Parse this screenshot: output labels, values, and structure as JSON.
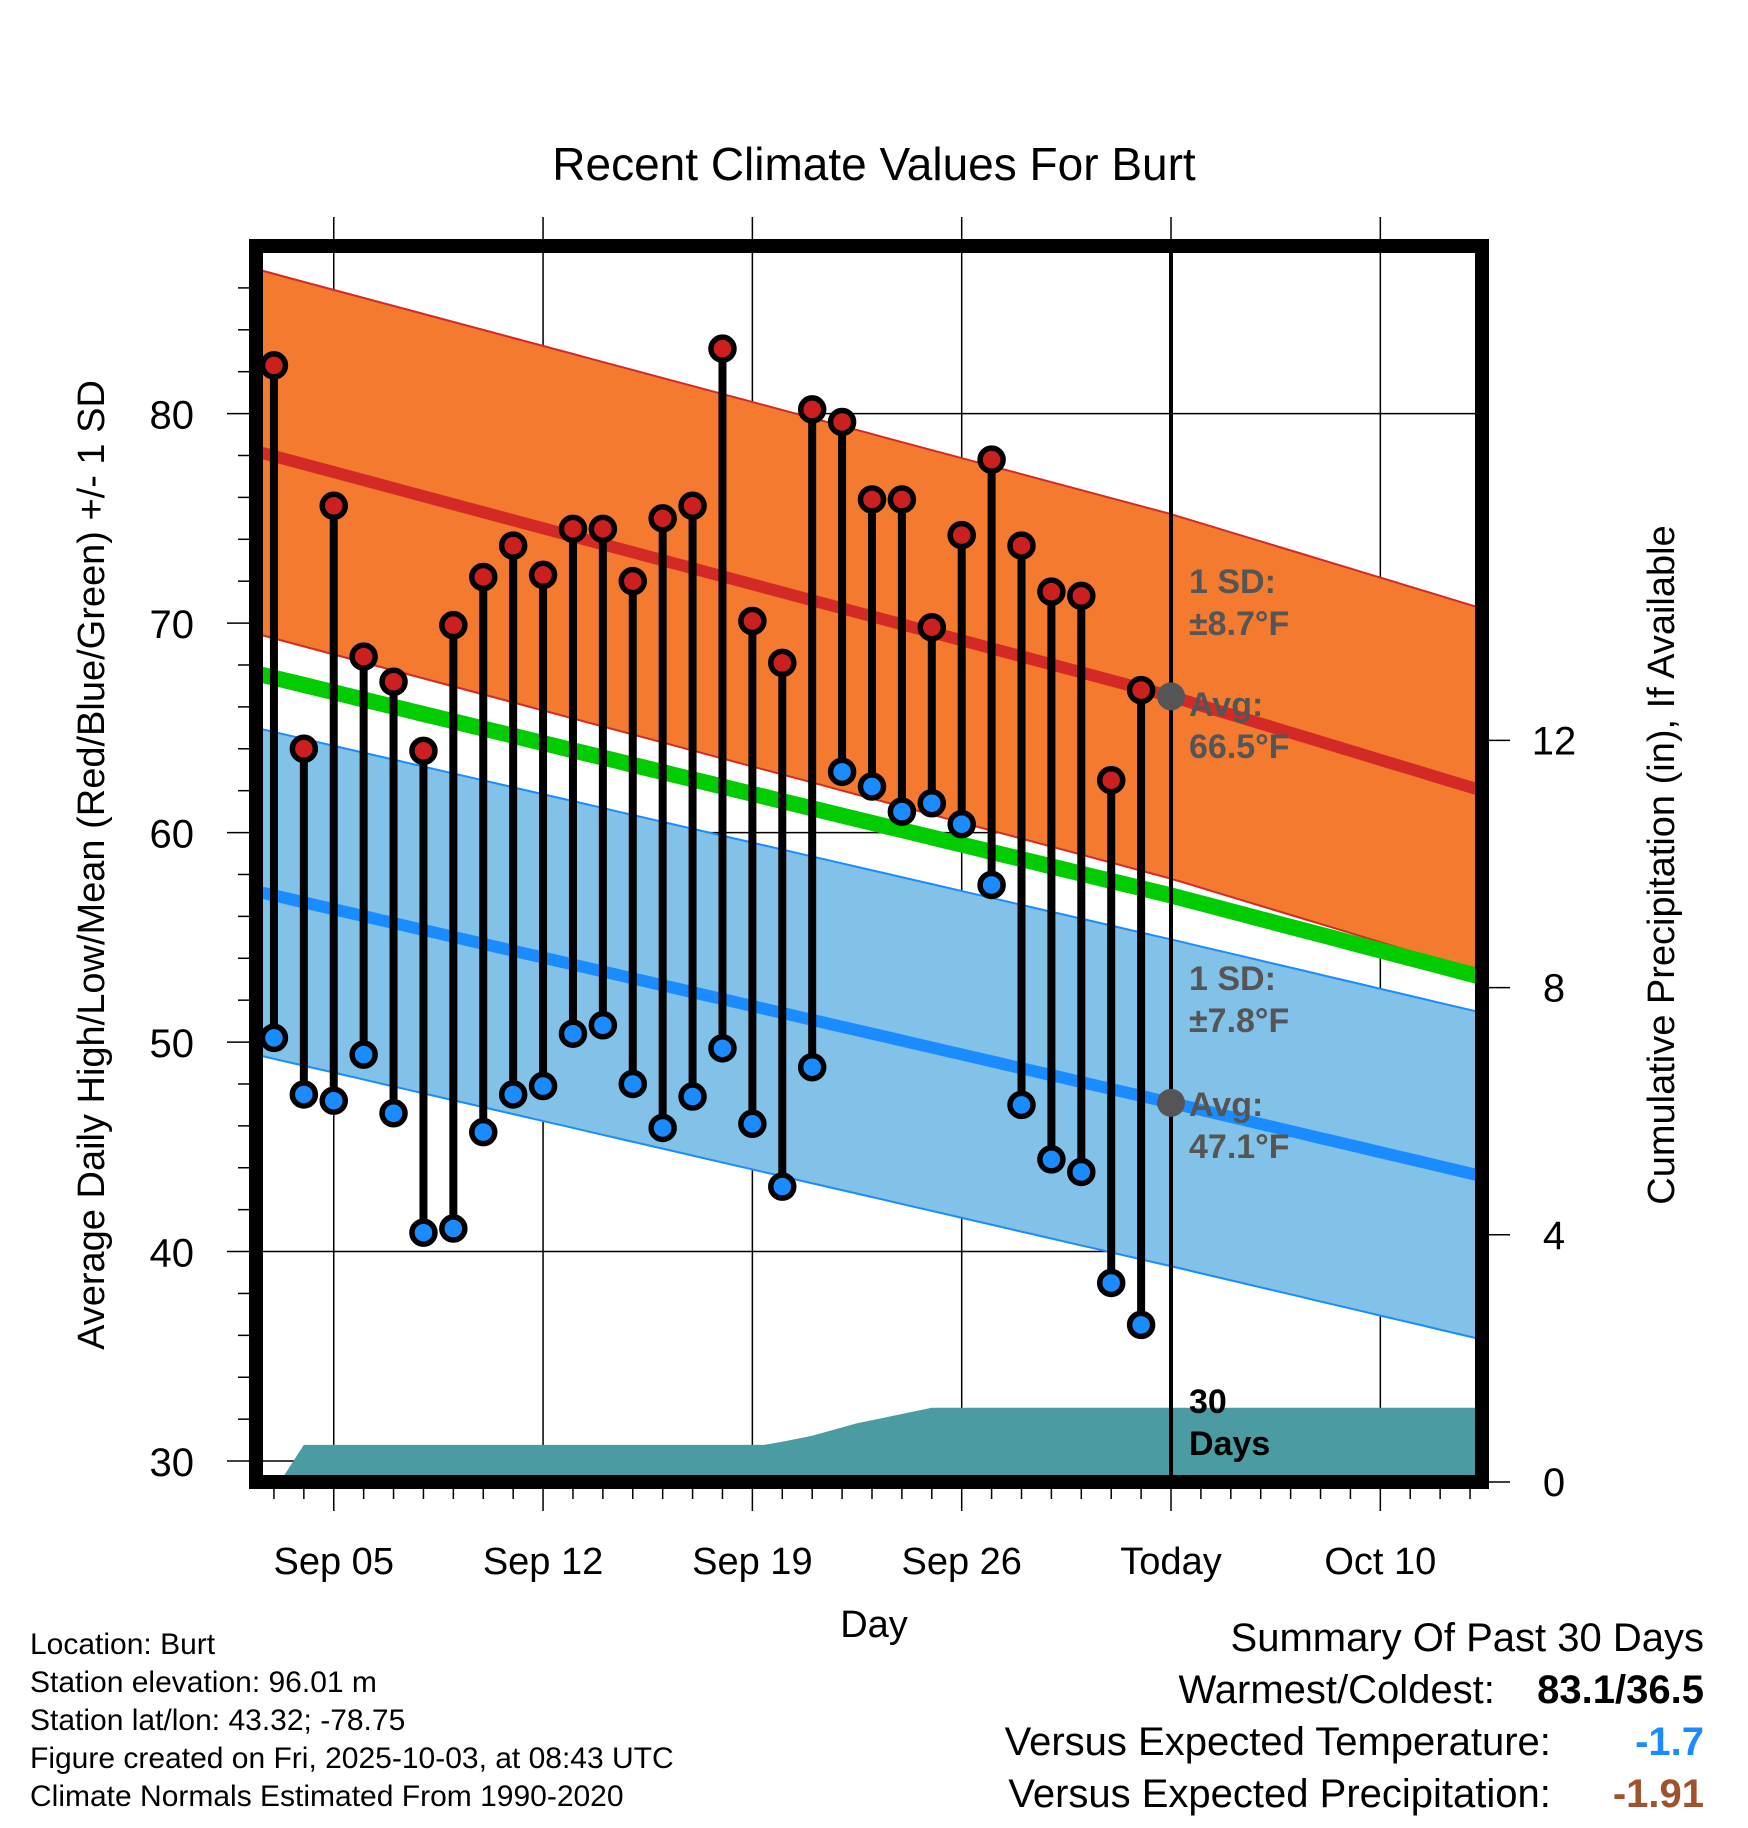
{
  "chart_data": {
    "type": "line",
    "title": "Recent Climate Values For Burt",
    "xlabel": "Day",
    "ylabel": "Average Daily High/Low/Mean (Red/Blue/Green) +/- 1 SD",
    "y2label": "Cumulative Precipitation (in), If Available",
    "xlim": [
      -2.6,
      38.4
    ],
    "ylim": [
      29,
      88
    ],
    "y2lim": [
      0,
      20
    ],
    "yticks": [
      30,
      40,
      50,
      60,
      70,
      80
    ],
    "y2ticks": [
      0,
      4,
      8,
      12
    ],
    "xticks": [
      {
        "x": 0,
        "label": "Sep 05"
      },
      {
        "x": 7,
        "label": "Sep 12"
      },
      {
        "x": 14,
        "label": "Sep 19"
      },
      {
        "x": 21,
        "label": "Sep 26"
      },
      {
        "x": 28,
        "label": "Today"
      },
      {
        "x": 35,
        "label": "Oct 10"
      }
    ],
    "today_x": 28,
    "days": [
      -2,
      -1,
      0,
      1,
      2,
      3,
      4,
      5,
      6,
      7,
      8,
      9,
      10,
      11,
      12,
      13,
      14,
      15,
      16,
      17,
      18,
      19,
      20,
      21,
      22,
      23,
      24,
      25,
      26,
      27
    ],
    "highs": [
      82.3,
      64.0,
      75.6,
      68.4,
      67.2,
      63.9,
      69.9,
      72.2,
      73.7,
      72.3,
      74.5,
      74.5,
      72.0,
      75.0,
      75.6,
      83.1,
      70.1,
      68.1,
      80.2,
      79.6,
      75.9,
      75.9,
      69.8,
      74.2,
      77.8,
      73.7,
      71.5,
      71.3,
      62.5,
      66.8
    ],
    "lows": [
      50.2,
      47.5,
      47.2,
      49.4,
      46.6,
      40.9,
      41.1,
      45.7,
      47.5,
      47.9,
      50.4,
      50.8,
      48.0,
      45.9,
      47.4,
      49.7,
      46.1,
      43.1,
      48.8,
      62.9,
      62.2,
      61.0,
      61.4,
      60.4,
      57.5,
      47.0,
      44.4,
      43.8,
      38.5,
      36.5
    ],
    "normal_high": {
      "x": [
        -2.6,
        28,
        38.4
      ],
      "values": [
        78.2,
        66.5,
        62.0
      ]
    },
    "normal_low": {
      "x": [
        -2.6,
        28,
        38.4
      ],
      "values": [
        57.2,
        47.1,
        43.6
      ]
    },
    "normal_mean": {
      "x": [
        -2.6,
        28,
        38.4
      ],
      "values": [
        67.6,
        57.0,
        53.1
      ]
    },
    "sd_high": 8.7,
    "sd_low": 7.8,
    "precip": {
      "x": [
        -1.8,
        -1.0,
        14.0,
        14.4,
        15.0,
        16.0,
        17.5,
        18.0,
        19.0,
        20.0,
        38.4
      ],
      "values": [
        0,
        0.6,
        0.6,
        0.6,
        0.65,
        0.75,
        0.95,
        1.0,
        1.1,
        1.2,
        1.2
      ]
    },
    "annotations": {
      "high_sd": "1 SD:",
      "high_sd_value": "±8.7°F",
      "high_avg": "Avg:",
      "high_avg_value": "66.5°F",
      "low_sd": "1 SD:",
      "low_sd_value": "±7.8°F",
      "low_avg": "Avg:",
      "low_avg_value": "47.1°F",
      "period_num": "30",
      "period_unit": "Days"
    }
  },
  "info": {
    "location": "Location: Burt",
    "elevation": "Station elevation: 96.01 m",
    "latlon": "Station lat/lon: 43.32; -78.75",
    "created": "Figure created on Fri, 2025-10-03, at 08:43 UTC",
    "normals": "Climate Normals Estimated From 1990-2020"
  },
  "summary": {
    "title": "Summary Of Past 30 Days",
    "warm_cold_label": "Warmest/Coldest:",
    "warm_cold_value": "83.1/36.5",
    "temp_label": "Versus Expected Temperature:",
    "temp_value": "-1.7",
    "precip_label": "Versus Expected Precipitation:",
    "precip_value": "-1.91"
  },
  "colors": {
    "high_band": "#f47a30",
    "high_line": "#d42a26",
    "low_band": "#82c1e8",
    "low_line": "#1a8cff",
    "mean_line": "#00cc00",
    "precip": "#4a9ba2",
    "high_dot": "#cc2020",
    "low_dot": "#1a8cff",
    "today_dot": "#555555",
    "annotation": "#555555",
    "temp_value": "#1a8cff",
    "precip_value": "#a0522d"
  }
}
